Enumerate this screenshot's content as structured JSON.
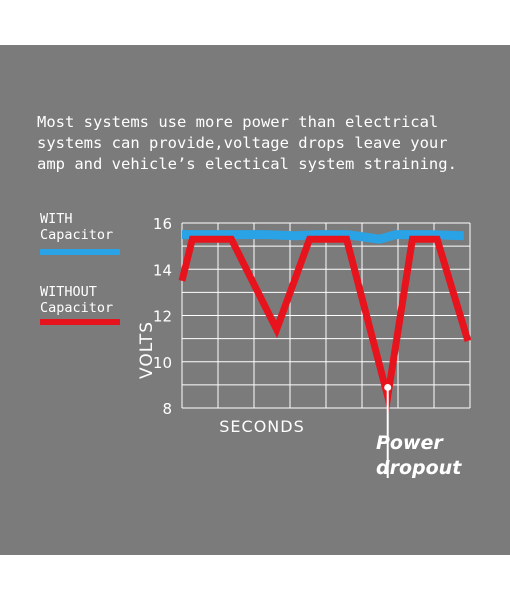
{
  "intro_text": "Most systems use more power than electrical\nsystems can provide,voltage drops leave your\namp and vehicle’s electical system straining.",
  "colors": {
    "background": "#7b7b7b",
    "with_series": "#29a3e6",
    "without_series": "#e8141d",
    "grid": "#ffffff",
    "text": "#ffffff"
  },
  "chart_data": {
    "type": "line",
    "title": "",
    "xlabel": "SECONDS",
    "ylabel": "VOLTS",
    "ylim": [
      8,
      16
    ],
    "yticks": [
      "16",
      "14",
      "12",
      "10",
      "8"
    ],
    "x_tick_labels": [],
    "grid": true,
    "legend": "left",
    "series": [
      {
        "name": "WITH\nCapacitor",
        "color": "#29a3e6",
        "points": [
          [
            0,
            15.5
          ],
          [
            2,
            15.5
          ],
          [
            4,
            15.5
          ],
          [
            5.5,
            15.45
          ],
          [
            6.6,
            15.5
          ],
          [
            8.0,
            15.5
          ],
          [
            8.8,
            15.4
          ],
          [
            9.6,
            15.3
          ],
          [
            10.4,
            15.5
          ],
          [
            12,
            15.5
          ],
          [
            13.7,
            15.45
          ]
        ]
      },
      {
        "name": "WITHOUT\nCapacitor",
        "color": "#e8141d",
        "points": [
          [
            0,
            13.5
          ],
          [
            0.5,
            15.3
          ],
          [
            2.4,
            15.3
          ],
          [
            4.6,
            11.4
          ],
          [
            6.2,
            15.3
          ],
          [
            8.0,
            15.3
          ],
          [
            10.0,
            8.5
          ],
          [
            11.2,
            15.3
          ],
          [
            12.4,
            15.3
          ],
          [
            13.9,
            10.9
          ]
        ]
      }
    ],
    "annotations": [
      {
        "text": "Power\ndropout",
        "x": 10.0,
        "y": 8.5
      }
    ]
  }
}
